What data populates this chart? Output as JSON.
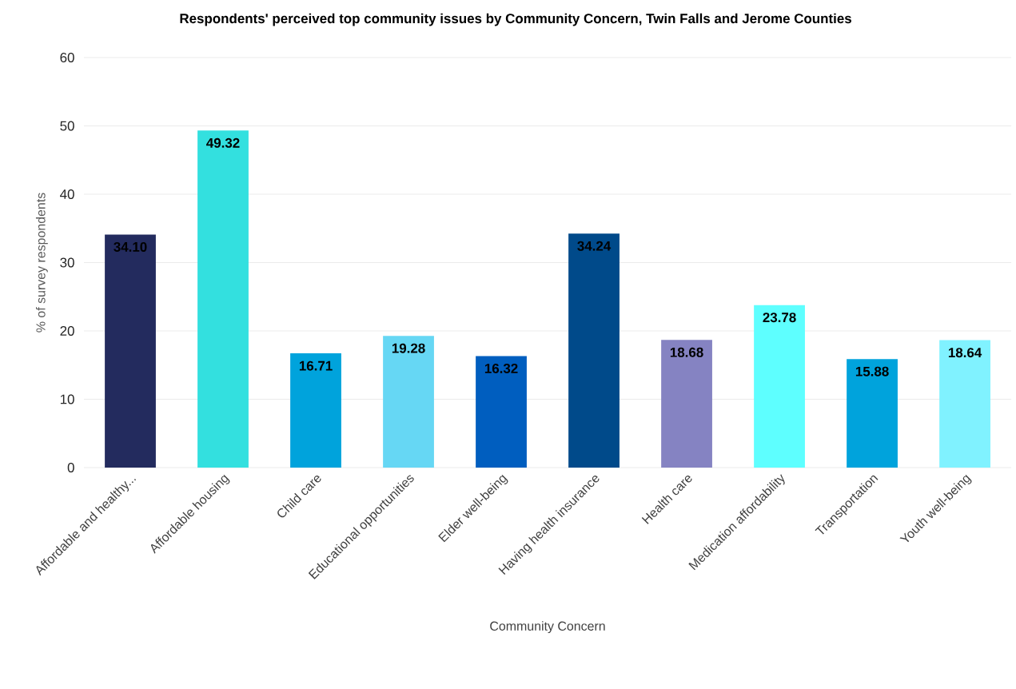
{
  "chart_data": {
    "type": "bar",
    "title": "Respondents' perceived top community issues by Community Concern, Twin Falls and Jerome Counties",
    "xlabel": "Community Concern",
    "ylabel": "% of survey respondents",
    "categories": [
      "Affordable and healthy...",
      "Affordable housing",
      "Child care",
      "Educational opportunities",
      "Elder well-being",
      "Having health insurance",
      "Health care",
      "Medication affordability",
      "Transportation",
      "Youth well-being"
    ],
    "values": [
      34.1,
      49.32,
      16.71,
      19.28,
      16.32,
      34.24,
      18.68,
      23.78,
      15.88,
      18.64
    ],
    "value_labels": [
      "34.10",
      "49.32",
      "16.71",
      "19.28",
      "16.32",
      "34.24",
      "18.68",
      "23.78",
      "15.88",
      "18.64"
    ],
    "colors": [
      "#232b5e",
      "#33e0df",
      "#00a3dc",
      "#66d7f4",
      "#005ebf",
      "#004a8a",
      "#8583c2",
      "#5effff",
      "#00a3dc",
      "#80f2ff"
    ],
    "ylim": [
      0,
      60
    ],
    "yticks": [
      0,
      10,
      20,
      30,
      40,
      50,
      60
    ],
    "grid": "y"
  }
}
